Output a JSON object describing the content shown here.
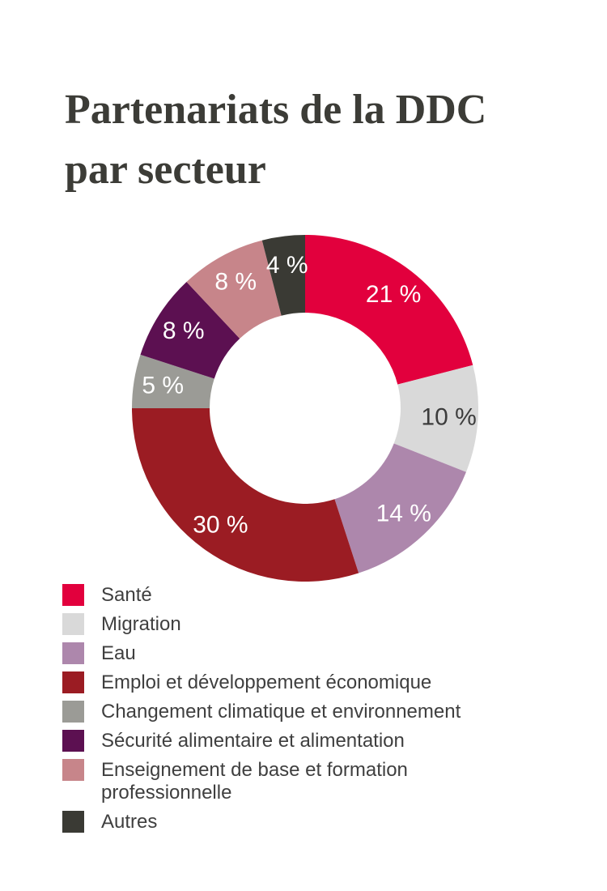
{
  "page": {
    "background": "#ffffff"
  },
  "title": {
    "lines": [
      "Partenariats de la DDC",
      "par secteur"
    ],
    "color": "#3c3c37"
  },
  "chart_data": {
    "type": "pie",
    "style": "donut",
    "title": "Partenariats de la DDC par secteur",
    "unit": "%",
    "direction": "clockwise",
    "start_angle_deg": 0,
    "inner_radius_ratio": 0.55,
    "legend_position": "bottom-left",
    "slices": [
      {
        "label": "Santé",
        "value": 21,
        "pct_label": "21 %",
        "color": "#e2003d",
        "label_color": "#ffffff"
      },
      {
        "label": "Migration",
        "value": 10,
        "pct_label": "10 %",
        "color": "#d9d9d9",
        "label_color": "#3c3c3c"
      },
      {
        "label": "Eau",
        "value": 14,
        "pct_label": "14 %",
        "color": "#ad87ac",
        "label_color": "#ffffff"
      },
      {
        "label": "Emploi et développement économique",
        "value": 30,
        "pct_label": "30 %",
        "color": "#9b1c23",
        "label_color": "#ffffff"
      },
      {
        "label": "Changement climatique et environnement",
        "value": 5,
        "pct_label": "5 %",
        "color": "#9b9b96",
        "label_color": "#ffffff"
      },
      {
        "label": "Sécurité alimentaire et alimentation",
        "value": 8,
        "pct_label": "8 %",
        "color": "#5c1051",
        "label_color": "#ffffff"
      },
      {
        "label": "Enseignement de base et formation professionnelle",
        "value": 8,
        "pct_label": "8 %",
        "color": "#c7858a",
        "label_color": "#ffffff"
      },
      {
        "label": "Autres",
        "value": 4,
        "pct_label": "4 %",
        "color": "#3a3a34",
        "label_color": "#ffffff"
      }
    ]
  }
}
